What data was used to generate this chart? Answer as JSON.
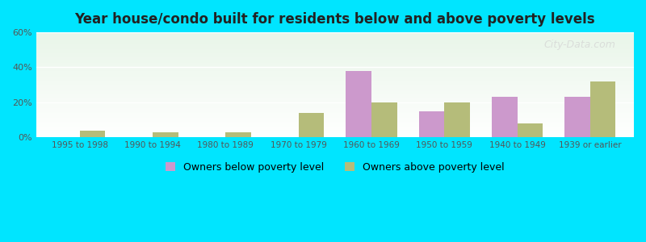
{
  "title": "Year house/condo built for residents below and above poverty levels",
  "categories": [
    "1995 to 1998",
    "1990 to 1994",
    "1980 to 1989",
    "1970 to 1979",
    "1960 to 1969",
    "1950 to 1959",
    "1940 to 1949",
    "1939 or earlier"
  ],
  "below_poverty": [
    0,
    0,
    0,
    0,
    38,
    15,
    23,
    23
  ],
  "above_poverty": [
    4,
    3,
    3,
    14,
    20,
    20,
    8,
    32
  ],
  "below_color": "#cc99cc",
  "above_color": "#b5bc7a",
  "ylim": [
    0,
    60
  ],
  "yticks": [
    0,
    20,
    40,
    60
  ],
  "ytick_labels": [
    "0%",
    "20%",
    "40%",
    "60%"
  ],
  "bar_width": 0.35,
  "outer_bg": "#00e5ff",
  "legend_below": "Owners below poverty level",
  "legend_above": "Owners above poverty level",
  "watermark": "City-Data.com"
}
